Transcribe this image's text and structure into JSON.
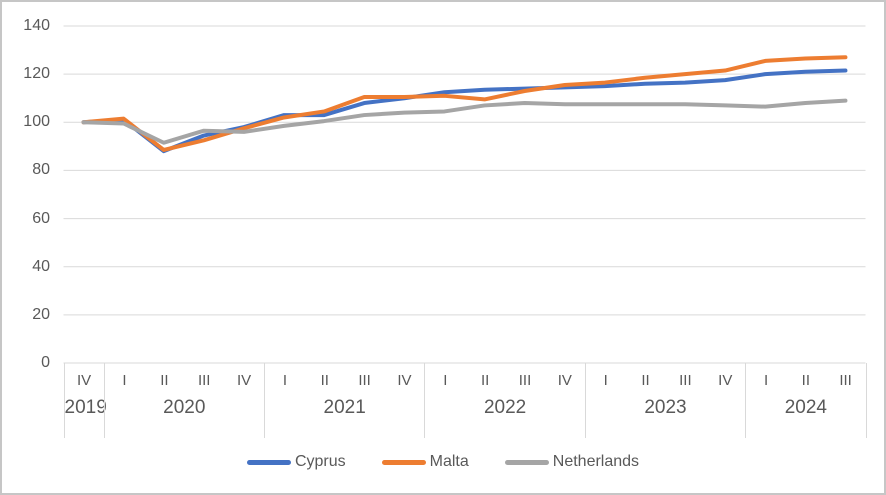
{
  "chart_data": {
    "type": "line",
    "title": "",
    "xlabel": "",
    "ylabel": "",
    "ylim": [
      0,
      140
    ],
    "yticks": [
      0,
      20,
      40,
      60,
      80,
      100,
      120,
      140
    ],
    "grid": true,
    "legend_position": "bottom",
    "x_axis_groups": [
      {
        "year": "2019",
        "quarters": [
          "IV"
        ]
      },
      {
        "year": "2020",
        "quarters": [
          "I",
          "II",
          "III",
          "IV"
        ]
      },
      {
        "year": "2021",
        "quarters": [
          "I",
          "II",
          "III",
          "IV"
        ]
      },
      {
        "year": "2022",
        "quarters": [
          "I",
          "II",
          "III",
          "IV"
        ]
      },
      {
        "year": "2023",
        "quarters": [
          "I",
          "II",
          "III",
          "IV"
        ]
      },
      {
        "year": "2024",
        "quarters": [
          "I",
          "II",
          "III"
        ]
      }
    ],
    "categories": [
      "2019 IV",
      "2020 I",
      "2020 II",
      "2020 III",
      "2020 IV",
      "2021 I",
      "2021 II",
      "2021 III",
      "2021 IV",
      "2022 I",
      "2022 II",
      "2022 III",
      "2022 IV",
      "2023 I",
      "2023 II",
      "2023 III",
      "2023 IV",
      "2024 I",
      "2024 II",
      "2024 III"
    ],
    "series": [
      {
        "name": "Cyprus",
        "color": "#4472C4",
        "values": [
          100,
          101,
          88,
          94.5,
          98,
          103,
          103,
          108,
          110,
          112.5,
          113.5,
          114,
          114.5,
          115,
          116,
          116.5,
          117.5,
          120,
          121,
          121.5
        ]
      },
      {
        "name": "Malta",
        "color": "#ED7D31",
        "values": [
          100,
          101.5,
          88.5,
          92.5,
          97.5,
          102,
          104.5,
          110.5,
          110.5,
          111,
          109.5,
          113,
          115.5,
          116.5,
          118.5,
          120,
          121.5,
          125.5,
          126.5,
          127
        ]
      },
      {
        "name": "Netherlands",
        "color": "#A5A5A5",
        "values": [
          100,
          99.5,
          91.5,
          96.5,
          96,
          98.5,
          100.5,
          103,
          104,
          104.5,
          107,
          108,
          107.5,
          107.5,
          107.5,
          107.5,
          107,
          106.5,
          108,
          109
        ]
      }
    ]
  },
  "colors": {
    "text": "#595959",
    "gridline": "#D9D9D9",
    "frame_border": "#C6C6C6"
  },
  "legend": {
    "items": [
      {
        "label": "Cyprus"
      },
      {
        "label": "Malta"
      },
      {
        "label": "Netherlands"
      }
    ]
  }
}
